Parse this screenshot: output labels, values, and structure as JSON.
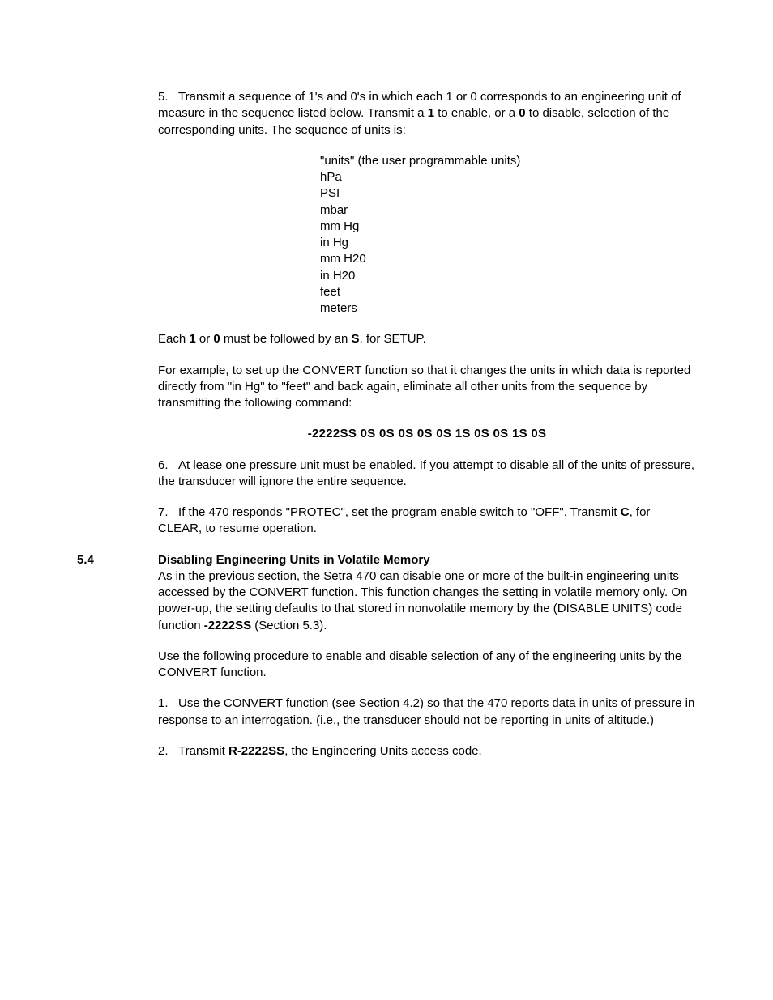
{
  "colors": {
    "text": "#000000",
    "background": "#ffffff"
  },
  "body": {
    "item5": {
      "num": "5.",
      "pre": "Transmit a sequence of 1's and 0's in which each 1 or 0 corresponds to an engineering unit of measure in the sequence listed below.  Transmit a ",
      "bold1": "1",
      "mid1": " to enable, or a ",
      "bold2": "0",
      "post": " to disable, selection of the corresponding units.  The sequence of units is:"
    },
    "units": {
      "u0": "\"units\" (the user programmable units)",
      "u1": "hPa",
      "u2": "PSI",
      "u3": "mbar",
      "u4": "mm Hg",
      "u5": "in Hg",
      "u6": "mm H20",
      "u7": "in H20",
      "u8": "feet",
      "u9": "meters"
    },
    "each": {
      "pre": "Each ",
      "b1": "1",
      "mid": " or ",
      "b2": "0",
      "mid2": " must be followed by an ",
      "b3": "S",
      "post": ", for SETUP."
    },
    "example": "For example, to set up the CONVERT function so that it changes the units in which data is reported directly from \"in Hg\" to \"feet\" and back again, eliminate all other units from the sequence by transmitting the following command:",
    "command": "-2222SS 0S 0S 0S 0S 0S 1S 0S 0S 1S 0S",
    "item6": {
      "num": "6.",
      "text": "At lease one pressure unit must be enabled.  If you attempt to disable all of the units of pressure, the transducer will ignore the entire sequence."
    },
    "item7": {
      "num": "7.",
      "pre": "If the 470 responds \"PROTEC\", set the program enable switch to \"OFF\".  Transmit ",
      "b1": "C",
      "post": ", for CLEAR, to resume operation."
    }
  },
  "section54": {
    "num": "5.4",
    "title": "Disabling Engineering Units in Volatile Memory",
    "intro": {
      "pre": "As in the previous section, the Setra 470 can disable one or more of the built-in engineering units accessed by the CONVERT function.  This function changes the setting in volatile memory only.  On power-up, the setting defaults to that stored in nonvolatile memory by the (DISABLE UNITS) code function ",
      "b1": "-2222SS",
      "post": " (Section 5.3)."
    },
    "use": "Use the following procedure to enable and disable selection of any of the engineering units by the CONVERT function.",
    "step1": {
      "num": "1.",
      "text": "Use the CONVERT function (see Section 4.2) so that the 470 reports data in units of pressure in response to an interrogation.  (i.e., the transducer should not be reporting in units of altitude.)"
    },
    "step2": {
      "num": "2.",
      "pre": "Transmit ",
      "b1": "R-2222SS",
      "post": ", the Engineering Units access code."
    }
  }
}
